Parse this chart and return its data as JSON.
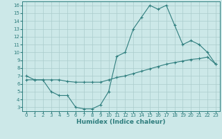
{
  "title": "",
  "xlabel": "Humidex (Indice chaleur)",
  "ylabel": "",
  "xlim": [
    -0.5,
    23.5
  ],
  "ylim": [
    2.5,
    16.5
  ],
  "yticks": [
    3,
    4,
    5,
    6,
    7,
    8,
    9,
    10,
    11,
    12,
    13,
    14,
    15,
    16
  ],
  "xticks": [
    0,
    1,
    2,
    3,
    4,
    5,
    6,
    7,
    8,
    9,
    10,
    11,
    12,
    13,
    14,
    15,
    16,
    17,
    18,
    19,
    20,
    21,
    22,
    23
  ],
  "background_color": "#cce8e8",
  "grid_color": "#aacccc",
  "line_color": "#2e7d7d",
  "series1_x": [
    0,
    1,
    2,
    3,
    4,
    5,
    6,
    7,
    8,
    9,
    10,
    11,
    12,
    13,
    14,
    15,
    16,
    17,
    18,
    19,
    20,
    21,
    22,
    23
  ],
  "series1_y": [
    7.0,
    6.5,
    6.5,
    5.0,
    4.5,
    4.5,
    3.0,
    2.8,
    2.8,
    3.3,
    5.0,
    9.5,
    10.0,
    13.0,
    14.5,
    16.0,
    15.5,
    16.0,
    13.5,
    11.0,
    11.5,
    11.0,
    10.0,
    8.5
  ],
  "series2_x": [
    0,
    1,
    2,
    3,
    4,
    5,
    6,
    7,
    8,
    9,
    10,
    11,
    12,
    13,
    14,
    15,
    16,
    17,
    18,
    19,
    20,
    21,
    22,
    23
  ],
  "series2_y": [
    6.5,
    6.5,
    6.5,
    6.5,
    6.5,
    6.3,
    6.2,
    6.2,
    6.2,
    6.2,
    6.5,
    6.8,
    7.0,
    7.3,
    7.6,
    7.9,
    8.2,
    8.5,
    8.7,
    8.9,
    9.1,
    9.2,
    9.4,
    8.5
  ],
  "tick_fontsize": 5,
  "xlabel_fontsize": 6.5
}
